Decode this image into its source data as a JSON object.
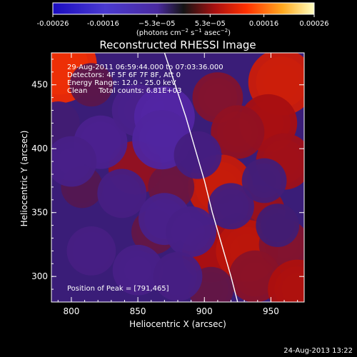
{
  "chart_data": {
    "type": "heatmap",
    "title": "Reconstructed RHESSI Image",
    "xlabel": "Heliocentric X (arcsec)",
    "ylabel": "Heliocentric Y (arcsec)",
    "xlim": [
      785,
      975
    ],
    "ylim": [
      280,
      475
    ],
    "x_ticks": [
      800,
      850,
      900,
      950
    ],
    "y_ticks": [
      300,
      350,
      400,
      450
    ],
    "colorbar": {
      "range": [
        -0.00026,
        0.00026
      ],
      "tick_values": [
        -0.00026,
        -0.00016,
        -5.3e-05,
        5.3e-05,
        0.00016,
        0.00026
      ],
      "tick_labels": [
        "-0.00026",
        "-0.00016",
        "−5.3e−05",
        "5.3e−05",
        "0.00016",
        "0.00026"
      ],
      "unit_parts": [
        "(photons cm",
        "−2",
        " s",
        "−1",
        " asec",
        "−2",
        ")"
      ]
    },
    "annotations": [
      "29-Aug-2011 06:59:44.000 to 07:03:36.000",
      "Detectors: 4F 5F 6F 7F 8F, Att 0",
      "Energy Range: 12.0 - 25.0 keV",
      "Clean     Total counts: 6.81E+03"
    ],
    "peak_label": "Position of Peak = [791,465]",
    "peak": [
      791,
      465
    ],
    "limb_curve": [
      [
        870,
        475
      ],
      [
        878,
        450
      ],
      [
        886,
        425
      ],
      [
        893,
        400
      ],
      [
        900,
        375
      ],
      [
        906,
        350
      ],
      [
        913,
        325
      ],
      [
        920,
        300
      ],
      [
        925,
        280
      ]
    ],
    "hot_spots": [
      {
        "x": 791,
        "y": 465,
        "value": 0.00026
      },
      {
        "x": 958,
        "y": 452,
        "value": 0.0002
      },
      {
        "x": 948,
        "y": 420,
        "value": 0.00014
      },
      {
        "x": 910,
        "y": 440,
        "value": 9e-05
      },
      {
        "x": 925,
        "y": 413,
        "value": 0.00011
      },
      {
        "x": 960,
        "y": 390,
        "value": 0.00013
      },
      {
        "x": 912,
        "y": 370,
        "value": 0.00019
      },
      {
        "x": 940,
        "y": 350,
        "value": 0.00012
      },
      {
        "x": 925,
        "y": 330,
        "value": 8e-05
      },
      {
        "x": 905,
        "y": 318,
        "value": 0.00014
      },
      {
        "x": 932,
        "y": 320,
        "value": 0.00017
      },
      {
        "x": 960,
        "y": 325,
        "value": 9e-05
      },
      {
        "x": 938,
        "y": 300,
        "value": 0.0001
      },
      {
        "x": 970,
        "y": 290,
        "value": 0.00015
      },
      {
        "x": 905,
        "y": 290,
        "value": 5e-05
      },
      {
        "x": 848,
        "y": 385,
        "value": 0.00011
      },
      {
        "x": 875,
        "y": 370,
        "value": 6e-05
      },
      {
        "x": 862,
        "y": 335,
        "value": 5e-05
      },
      {
        "x": 808,
        "y": 370,
        "value": 3e-05
      },
      {
        "x": 815,
        "y": 450,
        "value": 4e-05
      },
      {
        "x": 790,
        "y": 420,
        "value": -4e-05
      },
      {
        "x": 822,
        "y": 405,
        "value": -0.00011
      },
      {
        "x": 850,
        "y": 430,
        "value": -0.0001
      },
      {
        "x": 870,
        "y": 425,
        "value": -0.00016
      },
      {
        "x": 868,
        "y": 407,
        "value": -0.00015
      },
      {
        "x": 838,
        "y": 365,
        "value": -8e-05
      },
      {
        "x": 800,
        "y": 390,
        "value": -9e-05
      },
      {
        "x": 895,
        "y": 395,
        "value": -7e-05
      },
      {
        "x": 870,
        "y": 345,
        "value": -0.0001
      },
      {
        "x": 890,
        "y": 335,
        "value": -9e-05
      },
      {
        "x": 815,
        "y": 320,
        "value": -8e-05
      },
      {
        "x": 850,
        "y": 305,
        "value": -9e-05
      },
      {
        "x": 880,
        "y": 300,
        "value": -8e-05
      },
      {
        "x": 920,
        "y": 355,
        "value": -6e-05
      },
      {
        "x": 945,
        "y": 375,
        "value": -5e-05
      },
      {
        "x": 955,
        "y": 340,
        "value": -4e-05
      }
    ]
  },
  "footer": {
    "date": "24-Aug-2013 13:22"
  }
}
